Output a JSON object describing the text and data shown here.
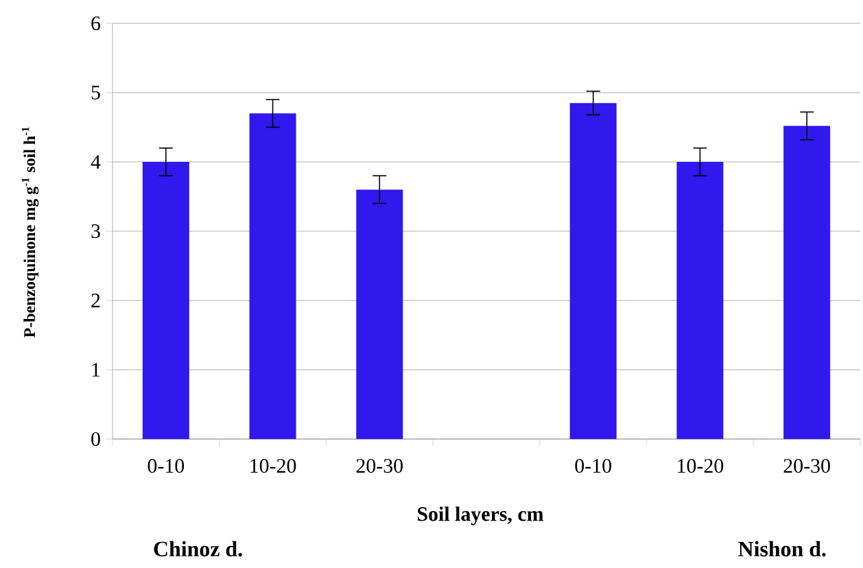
{
  "chart_data": {
    "type": "bar",
    "xlabel": "Soil layers, cm",
    "ylabel": "P-benzoquinone mg g$^{-1}$ soil h$^{-1}$",
    "categories": [
      "0-10",
      "10-20",
      "20-30",
      null,
      "0-10",
      "10-20",
      "20-30"
    ],
    "values": [
      4.0,
      4.7,
      3.6,
      null,
      4.85,
      4.0,
      4.52
    ],
    "errors": [
      0.2,
      0.2,
      0.2,
      null,
      0.17,
      0.2,
      0.2
    ],
    "color": "#3018ee",
    "ylim": [
      0,
      6
    ],
    "yticks": [
      0,
      1,
      2,
      3,
      4,
      5,
      6
    ],
    "grid": "y",
    "annotations": [
      "Chinoz d.",
      "Nishon d."
    ]
  }
}
